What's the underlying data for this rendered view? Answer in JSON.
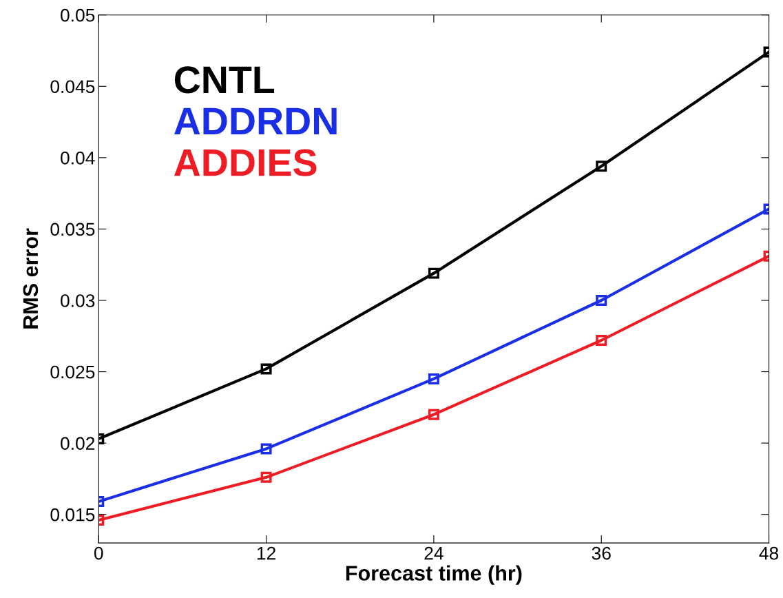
{
  "chart_data": {
    "type": "line",
    "xlabel": "Forecast time (hr)",
    "ylabel": "RMS error",
    "x": [
      0,
      12,
      24,
      36,
      48
    ],
    "series": [
      {
        "name": "CNTL",
        "color": "#000000",
        "values": [
          0.0203,
          0.0252,
          0.0319,
          0.0394,
          0.0474
        ]
      },
      {
        "name": "ADDRDN",
        "color": "#1a2ee6",
        "values": [
          0.0159,
          0.0196,
          0.0245,
          0.03,
          0.0364
        ]
      },
      {
        "name": "ADDIES",
        "color": "#ee1c25",
        "values": [
          0.0146,
          0.0176,
          0.022,
          0.0272,
          0.0331
        ]
      }
    ],
    "xlim": [
      0,
      48
    ],
    "xticks": [
      0,
      12,
      24,
      36,
      48
    ],
    "ylim": [
      0.013,
      0.05
    ],
    "yticks": [
      0.015,
      0.02,
      0.025,
      0.03,
      0.035,
      0.04,
      0.045,
      0.05
    ],
    "grid": false,
    "legend": "top left",
    "marker": "square",
    "line_style": "solid"
  }
}
